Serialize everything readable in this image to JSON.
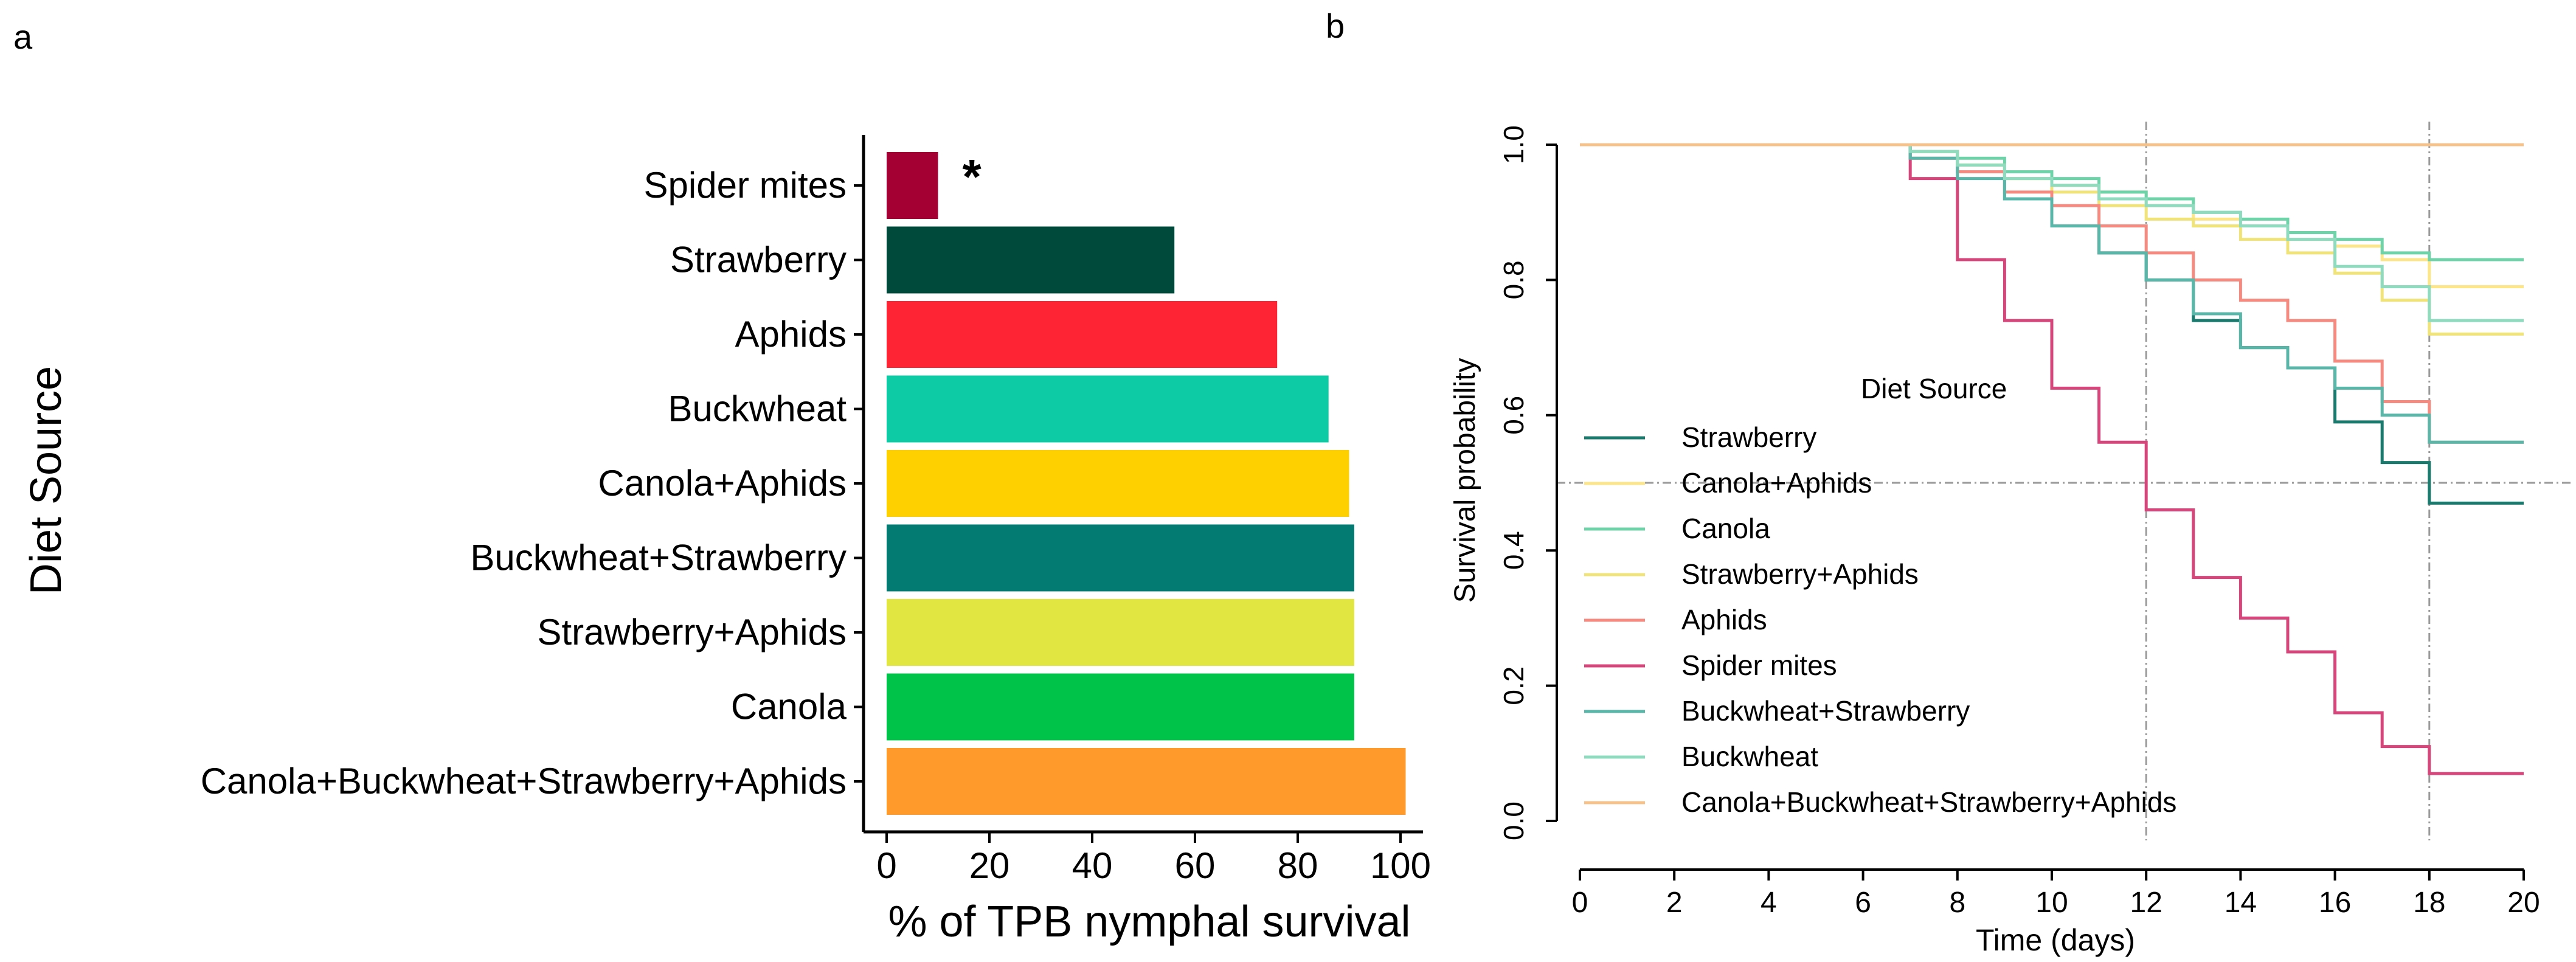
{
  "chart_data": [
    {
      "panel_label": "a",
      "type": "bar",
      "orientation": "horizontal",
      "ylabel": "Diet Source",
      "xlabel": "% of TPB nymphal survival",
      "xlim": [
        0,
        105
      ],
      "xticks": [
        "0",
        "20",
        "40",
        "60",
        "80",
        "100"
      ],
      "categories": [
        "Spider mites",
        "Strawberry",
        "Aphids",
        "Buckwheat",
        "Canola+Aphids",
        "Buckwheat+Strawberry",
        "Strawberry+Aphids",
        "Canola",
        "Canola+Buckwheat+Strawberry+Aphids"
      ],
      "values": [
        10,
        56,
        76,
        86,
        90,
        91,
        91,
        91,
        101
      ],
      "colors": [
        "#a50034",
        "#004a3c",
        "#ff2434",
        "#0ccba5",
        "#ffd000",
        "#037b72",
        "#e2e641",
        "#00c44a",
        "#ff9a2b"
      ],
      "annotations": [
        {
          "category": "Spider mites",
          "text": "*"
        }
      ]
    },
    {
      "panel_label": "b",
      "type": "line",
      "step": true,
      "xlabel": "Time (days)",
      "ylabel": "Survival probability",
      "xlim": [
        0,
        20
      ],
      "ylim": [
        0,
        1
      ],
      "xticks": [
        "0",
        "2",
        "4",
        "6",
        "8",
        "10",
        "12",
        "14",
        "16",
        "18",
        "20"
      ],
      "yticks": [
        "0.0",
        "0.2",
        "0.4",
        "0.6",
        "0.8",
        "1.0"
      ],
      "reference_lines": {
        "vertical_x": [
          12,
          18
        ],
        "horizontal_y": [
          0.5
        ]
      },
      "legend": {
        "title": "Diet Source",
        "placement": "left"
      },
      "series": [
        {
          "name": "Strawberry",
          "color": "#1b7a6e",
          "x": [
            0,
            7,
            8,
            9,
            10,
            11,
            12,
            13,
            14,
            15,
            16,
            17,
            18,
            20
          ],
          "y": [
            1.0,
            0.99,
            0.96,
            0.92,
            0.88,
            0.84,
            0.8,
            0.74,
            0.7,
            0.67,
            0.59,
            0.53,
            0.47,
            0.47
          ]
        },
        {
          "name": "Canola+Aphids",
          "color": "#fde68a",
          "x": [
            0,
            7,
            8,
            9,
            10,
            11,
            12,
            13,
            14,
            15,
            16,
            17,
            18,
            20
          ],
          "y": [
            1.0,
            0.99,
            0.97,
            0.95,
            0.94,
            0.93,
            0.91,
            0.89,
            0.88,
            0.86,
            0.85,
            0.83,
            0.79,
            0.79
          ]
        },
        {
          "name": "Canola",
          "color": "#6ed3a8",
          "x": [
            0,
            7,
            8,
            9,
            10,
            11,
            12,
            13,
            14,
            15,
            16,
            17,
            18,
            20
          ],
          "y": [
            1.0,
            0.99,
            0.98,
            0.96,
            0.95,
            0.93,
            0.92,
            0.9,
            0.89,
            0.87,
            0.86,
            0.84,
            0.83,
            0.83
          ]
        },
        {
          "name": "Strawberry+Aphids",
          "color": "#efe37a",
          "x": [
            0,
            7,
            8,
            9,
            10,
            11,
            12,
            13,
            14,
            15,
            16,
            17,
            18,
            20
          ],
          "y": [
            1.0,
            0.99,
            0.97,
            0.95,
            0.93,
            0.91,
            0.89,
            0.88,
            0.86,
            0.84,
            0.81,
            0.77,
            0.72,
            0.72
          ]
        },
        {
          "name": "Aphids",
          "color": "#f58b80",
          "x": [
            0,
            7,
            8,
            9,
            10,
            11,
            12,
            13,
            14,
            15,
            16,
            17,
            18,
            20
          ],
          "y": [
            1.0,
            0.98,
            0.96,
            0.93,
            0.91,
            0.88,
            0.84,
            0.8,
            0.77,
            0.74,
            0.68,
            0.62,
            0.56,
            0.56
          ]
        },
        {
          "name": "Spider mites",
          "color": "#d6467a",
          "x": [
            0,
            7,
            8,
            9,
            10,
            11,
            12,
            13,
            14,
            15,
            16,
            17,
            18,
            20
          ],
          "y": [
            1.0,
            0.95,
            0.83,
            0.74,
            0.64,
            0.56,
            0.46,
            0.36,
            0.3,
            0.25,
            0.16,
            0.11,
            0.07,
            0.07
          ]
        },
        {
          "name": "Buckwheat+Strawberry",
          "color": "#5ab6a8",
          "x": [
            0,
            7,
            8,
            9,
            10,
            11,
            12,
            13,
            14,
            15,
            16,
            17,
            18,
            20
          ],
          "y": [
            1.0,
            0.98,
            0.95,
            0.92,
            0.88,
            0.84,
            0.8,
            0.75,
            0.7,
            0.67,
            0.64,
            0.6,
            0.56,
            0.56
          ]
        },
        {
          "name": "Buckwheat",
          "color": "#8fdbc0",
          "x": [
            0,
            7,
            8,
            9,
            10,
            11,
            12,
            13,
            14,
            15,
            16,
            17,
            18,
            20
          ],
          "y": [
            1.0,
            0.99,
            0.97,
            0.95,
            0.94,
            0.92,
            0.91,
            0.9,
            0.88,
            0.86,
            0.82,
            0.79,
            0.74,
            0.74
          ]
        },
        {
          "name": "Canola+Buckwheat+Strawberry+Aphids",
          "color": "#f6c28b",
          "x": [
            0,
            20
          ],
          "y": [
            1.0,
            1.0
          ]
        }
      ]
    }
  ]
}
